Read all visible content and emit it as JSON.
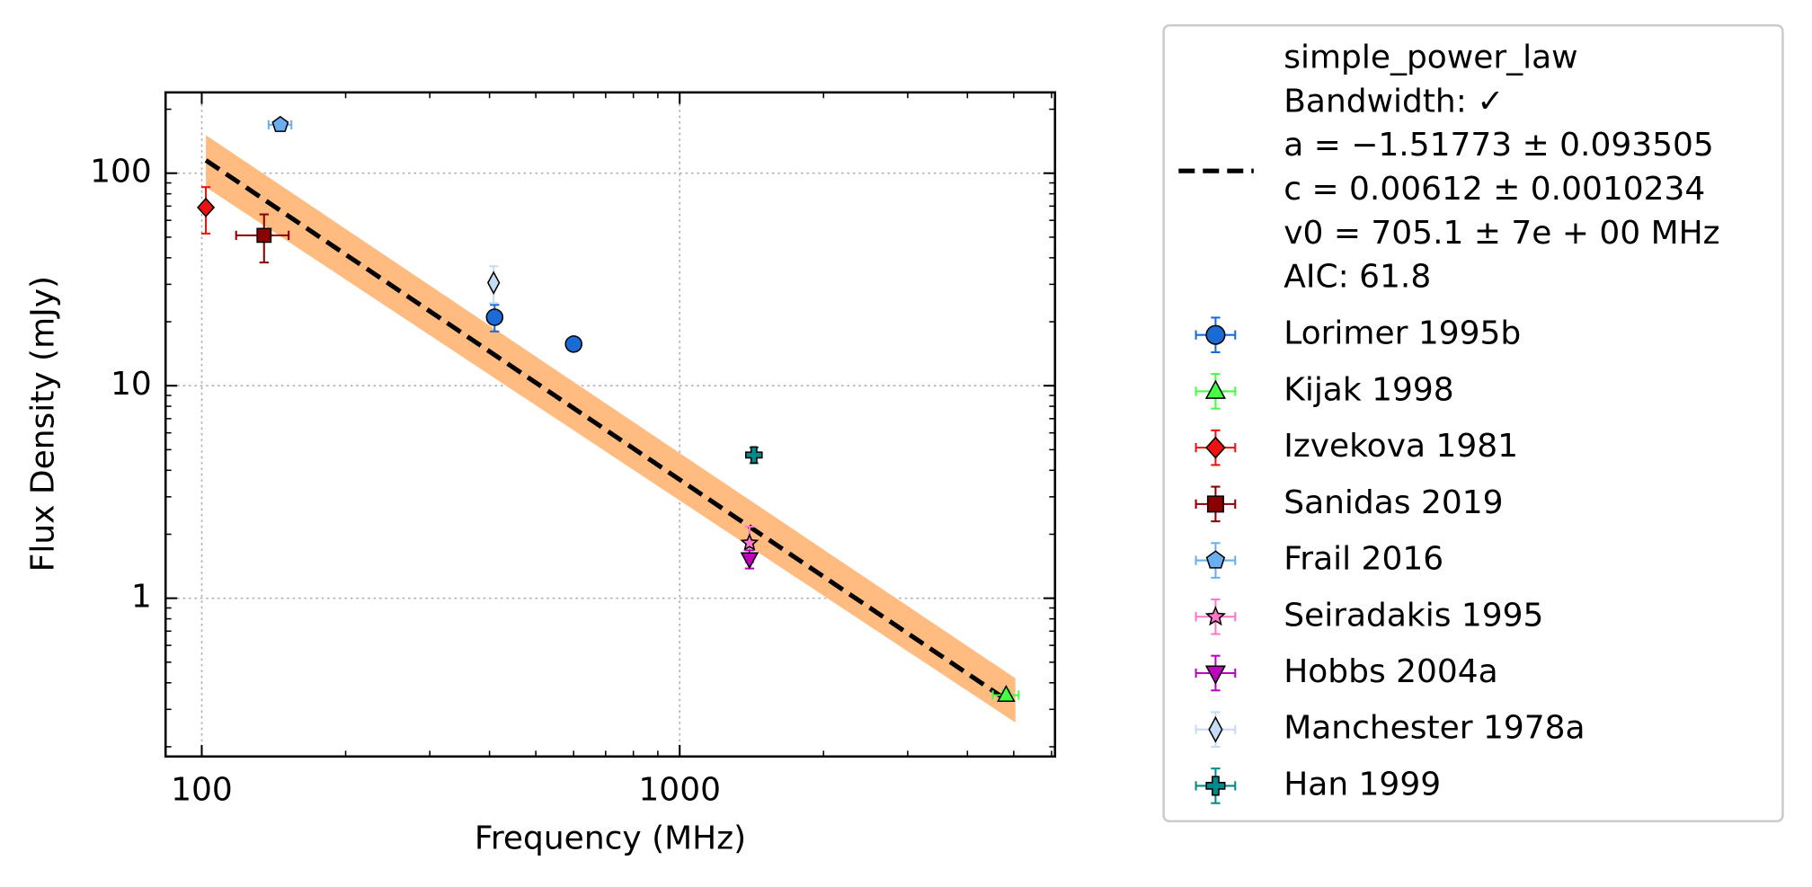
{
  "chart_data": {
    "type": "scatter",
    "xlabel": "Frequency (MHz)",
    "ylabel": "Flux Density (mJy)",
    "xscale": "log",
    "yscale": "log",
    "xlim": [
      84,
      6100
    ],
    "ylim": [
      0.18,
      240
    ],
    "xticks": [
      100,
      1000
    ],
    "yticks": [
      1,
      10,
      100
    ],
    "xminorticks": [
      200,
      300,
      400,
      500,
      600,
      700,
      800,
      900,
      2000,
      3000,
      4000,
      5000,
      6000
    ],
    "yminorticks": [
      0.2,
      0.3,
      0.4,
      0.5,
      0.6,
      0.7,
      0.8,
      0.9,
      2,
      3,
      4,
      5,
      6,
      7,
      8,
      9,
      20,
      30,
      40,
      50,
      60,
      70,
      80,
      90,
      200
    ],
    "grid": true,
    "legend": "outside right",
    "fit": {
      "label_lines": [
        "simple_power_law",
        "Bandwidth: ✓",
        "a = −1.51773 ± 0.093505",
        "c = 0.00612 ± 0.0010234",
        "v0 = 705.1 ± 7e + 00 MHz",
        "AIC: 61.8"
      ],
      "color": "#000000",
      "x": [
        102,
        4850
      ],
      "values": [
        115,
        0.33
      ],
      "band": {
        "color": "#ffbb80",
        "x": [
          102,
          5040
        ],
        "upper": [
          151,
          0.42
        ],
        "lower": [
          86,
          0.26
        ]
      }
    },
    "series": [
      {
        "name": "Lorimer 1995b",
        "color": "#1a6bd6",
        "marker": "circle",
        "x": [
          410,
          600
        ],
        "values": [
          21,
          15.7
        ],
        "xerr": [
          0,
          0
        ],
        "yerr": [
          3,
          0
        ]
      },
      {
        "name": "Kijak 1998",
        "color": "#44ff44",
        "marker": "triangle-up",
        "x": [
          4820
        ],
        "values": [
          0.35
        ],
        "xerr": [
          300
        ],
        "yerr": [
          0.02
        ]
      },
      {
        "name": "Izvekova 1981",
        "color": "#ee1111",
        "marker": "diamond",
        "x": [
          102
        ],
        "values": [
          69
        ],
        "xerr": [
          0
        ],
        "yerr": [
          17
        ]
      },
      {
        "name": "Sanidas 2019",
        "color": "#8b0000",
        "marker": "square",
        "x": [
          135
        ],
        "values": [
          51
        ],
        "xerr": [
          17
        ],
        "yerr": [
          13
        ]
      },
      {
        "name": "Frail 2016",
        "color": "#6aaef0",
        "marker": "pentagon",
        "x": [
          146
        ],
        "values": [
          169
        ],
        "xerr": [
          8
        ],
        "yerr": [
          0
        ]
      },
      {
        "name": "Seiradakis 1995",
        "color": "#ff77c8",
        "marker": "star",
        "x": [
          1400
        ],
        "values": [
          1.82
        ],
        "xerr": [
          0
        ],
        "yerr": [
          0.35
        ]
      },
      {
        "name": "Hobbs 2004a",
        "color": "#c000c0",
        "marker": "triangle-down",
        "x": [
          1400
        ],
        "values": [
          1.53
        ],
        "xerr": [
          0
        ],
        "yerr": [
          0.15
        ]
      },
      {
        "name": "Manchester 1978a",
        "color": "#c6dcf5",
        "marker": "thin-diamond",
        "x": [
          408
        ],
        "values": [
          30.5
        ],
        "xerr": [
          0
        ],
        "yerr": [
          6
        ]
      },
      {
        "name": "Han 1999",
        "color": "#008b8b",
        "marker": "plus",
        "x": [
          1430
        ],
        "values": [
          4.72
        ],
        "xerr": [
          0
        ],
        "yerr": [
          0.4
        ]
      }
    ]
  }
}
